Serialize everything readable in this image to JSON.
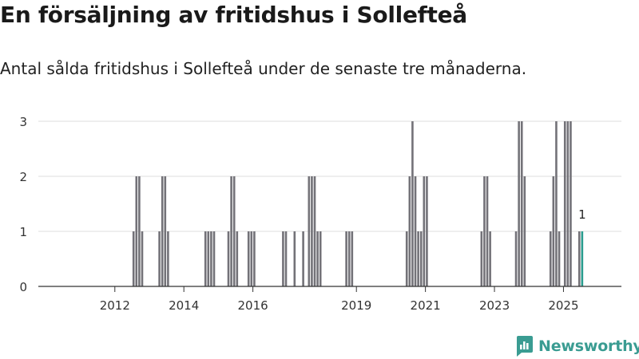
{
  "title": "En försäljning av fritidshus i Sollefteå",
  "subtitle": "Antal sålda fritidshus i Sollefteå under de senaste tre månaderna.",
  "brand": {
    "name": "Newsworthy",
    "icon": "newsworthy-logo-icon",
    "color": "#3a9c92"
  },
  "chart_data": {
    "type": "bar",
    "xlabel": "",
    "ylabel": "",
    "ylim": [
      0,
      3
    ],
    "yticks": [
      "0",
      "1",
      "2",
      "3"
    ],
    "xticks": [
      "2012",
      "2014",
      "2016",
      "2019",
      "2021",
      "2023",
      "2025"
    ],
    "grid": true,
    "bar_color": "#737278",
    "highlight_color": "#2a9d8f",
    "series": [
      {
        "values": [
          {
            "x": "2012-07",
            "y": 1
          },
          {
            "x": "2012-08",
            "y": 2
          },
          {
            "x": "2012-09",
            "y": 2
          },
          {
            "x": "2012-10",
            "y": 1
          },
          {
            "x": "2013-04",
            "y": 1
          },
          {
            "x": "2013-05",
            "y": 2
          },
          {
            "x": "2013-06",
            "y": 2
          },
          {
            "x": "2013-07",
            "y": 1
          },
          {
            "x": "2014-08",
            "y": 1
          },
          {
            "x": "2014-09",
            "y": 1
          },
          {
            "x": "2014-10",
            "y": 1
          },
          {
            "x": "2014-11",
            "y": 1
          },
          {
            "x": "2015-04",
            "y": 1
          },
          {
            "x": "2015-05",
            "y": 2
          },
          {
            "x": "2015-06",
            "y": 2
          },
          {
            "x": "2015-07",
            "y": 1
          },
          {
            "x": "2015-11",
            "y": 1
          },
          {
            "x": "2015-12",
            "y": 1
          },
          {
            "x": "2016-01",
            "y": 1
          },
          {
            "x": "2016-11",
            "y": 1
          },
          {
            "x": "2016-12",
            "y": 1
          },
          {
            "x": "2017-03",
            "y": 1
          },
          {
            "x": "2017-06",
            "y": 1
          },
          {
            "x": "2017-08",
            "y": 2
          },
          {
            "x": "2017-09",
            "y": 2
          },
          {
            "x": "2017-10",
            "y": 2
          },
          {
            "x": "2017-11",
            "y": 1
          },
          {
            "x": "2017-12",
            "y": 1
          },
          {
            "x": "2018-09",
            "y": 1
          },
          {
            "x": "2018-10",
            "y": 1
          },
          {
            "x": "2018-11",
            "y": 1
          },
          {
            "x": "2020-06",
            "y": 1
          },
          {
            "x": "2020-07",
            "y": 2
          },
          {
            "x": "2020-08",
            "y": 3
          },
          {
            "x": "2020-09",
            "y": 2
          },
          {
            "x": "2020-10",
            "y": 1
          },
          {
            "x": "2020-11",
            "y": 1
          },
          {
            "x": "2020-12",
            "y": 2
          },
          {
            "x": "2021-01",
            "y": 2
          },
          {
            "x": "2022-08",
            "y": 1
          },
          {
            "x": "2022-09",
            "y": 2
          },
          {
            "x": "2022-10",
            "y": 2
          },
          {
            "x": "2022-11",
            "y": 1
          },
          {
            "x": "2023-08",
            "y": 1
          },
          {
            "x": "2023-09",
            "y": 3
          },
          {
            "x": "2023-10",
            "y": 3
          },
          {
            "x": "2023-11",
            "y": 2
          },
          {
            "x": "2024-08",
            "y": 1
          },
          {
            "x": "2024-09",
            "y": 2
          },
          {
            "x": "2024-10",
            "y": 3
          },
          {
            "x": "2024-11",
            "y": 1
          },
          {
            "x": "2025-01",
            "y": 3
          },
          {
            "x": "2025-02",
            "y": 3
          },
          {
            "x": "2025-03",
            "y": 3
          },
          {
            "x": "2025-06",
            "y": 1
          },
          {
            "x": "2025-07",
            "y": 1
          }
        ]
      }
    ],
    "highlight": {
      "x": "2025-07",
      "y": 1,
      "label": "1"
    }
  }
}
